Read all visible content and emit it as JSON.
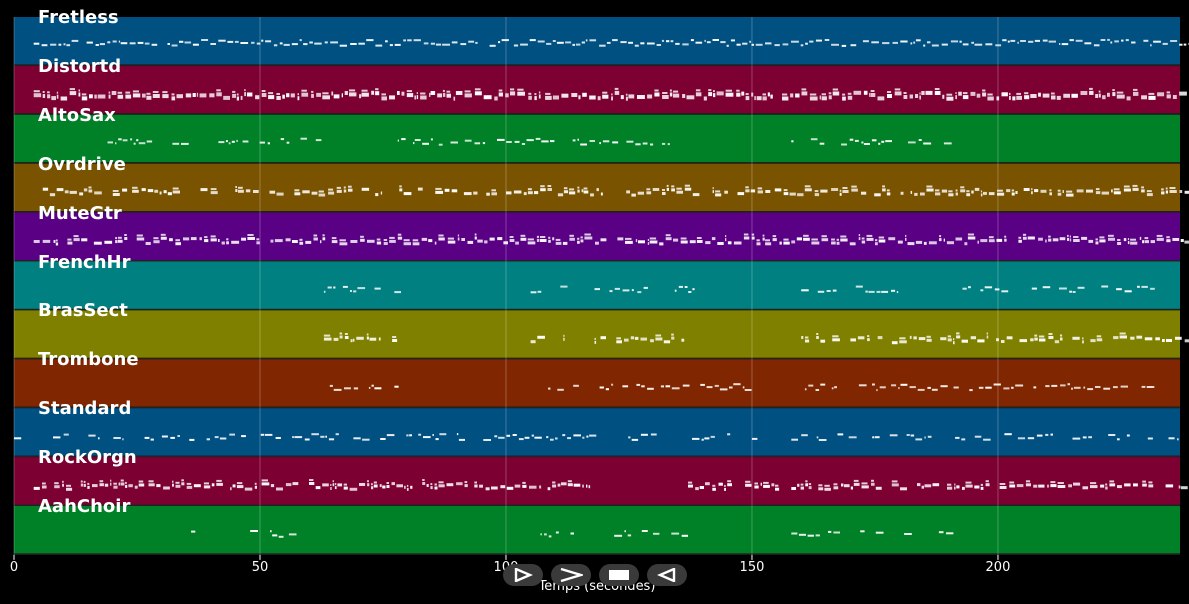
{
  "tracks": [
    {
      "name": "Fretless",
      "color": "#005082",
      "density": 0.95,
      "segments": [
        [
          4,
          243
        ]
      ],
      "pitch": 0.35,
      "thick": 2
    },
    {
      "name": "Distortd",
      "color": "#7d0033",
      "density": 0.98,
      "segments": [
        [
          4,
          243
        ]
      ],
      "pitch": 0.5,
      "thick": 4
    },
    {
      "name": "AltoSax",
      "color": "#008027",
      "density": 0.7,
      "segments": [
        [
          19,
          64
        ],
        [
          78,
          138
        ],
        [
          158,
          190
        ]
      ],
      "pitch": 0.4,
      "thick": 2
    },
    {
      "name": "Ovrdrive",
      "color": "#7a5300",
      "density": 0.85,
      "segments": [
        [
          4,
          22
        ],
        [
          24,
          34
        ],
        [
          36,
          80
        ],
        [
          81,
          95
        ],
        [
          96,
          138
        ],
        [
          142,
          243
        ]
      ],
      "pitch": 0.45,
      "thick": 3
    },
    {
      "name": "MuteGtr",
      "color": "#5a0085",
      "density": 0.98,
      "segments": [
        [
          4,
          243
        ]
      ],
      "pitch": 0.45,
      "thick": 3
    },
    {
      "name": "FrenchHr",
      "color": "#008080",
      "density": 0.7,
      "segments": [
        [
          63,
          78
        ],
        [
          105,
          112
        ],
        [
          118,
          138
        ],
        [
          160,
          167
        ],
        [
          170,
          182
        ],
        [
          190,
          232
        ]
      ],
      "pitch": 0.45,
      "thick": 2
    },
    {
      "name": "BrasSect",
      "color": "#808000",
      "density": 0.85,
      "segments": [
        [
          63,
          78
        ],
        [
          105,
          112
        ],
        [
          118,
          137
        ],
        [
          160,
          167
        ],
        [
          170,
          243
        ]
      ],
      "pitch": 0.5,
      "thick": 3
    },
    {
      "name": "Trombone",
      "color": "#802600",
      "density": 0.75,
      "segments": [
        [
          63,
          78
        ],
        [
          108,
          115
        ],
        [
          118,
          150
        ],
        [
          160,
          167
        ],
        [
          170,
          232
        ]
      ],
      "pitch": 0.45,
      "thick": 2
    },
    {
      "name": "Standard",
      "color": "#005082",
      "density": 0.6,
      "segments": [
        [
          0,
          152
        ],
        [
          158,
          243
        ]
      ],
      "pitch": 0.5,
      "thick": 2
    },
    {
      "name": "RockOrgn",
      "color": "#7d0033",
      "density": 0.9,
      "segments": [
        [
          4,
          117
        ],
        [
          137,
          155
        ],
        [
          158,
          243
        ]
      ],
      "pitch": 0.5,
      "thick": 3
    },
    {
      "name": "AahChoir",
      "color": "#008027",
      "density": 0.6,
      "segments": [
        [
          36,
          37
        ],
        [
          48,
          56
        ],
        [
          95,
          96
        ],
        [
          107,
          115
        ],
        [
          122,
          138
        ],
        [
          158,
          167
        ],
        [
          172,
          181
        ],
        [
          188,
          190
        ]
      ],
      "pitch": 0.45,
      "thick": 2
    }
  ],
  "chart_data": {
    "type": "piano-roll",
    "xlabel": "Temps (secondes)",
    "xlim": [
      0,
      237
    ],
    "xticks": [
      0,
      50,
      100,
      150,
      200
    ],
    "tick_labels": [
      "0",
      "50",
      "100",
      "150",
      "200"
    ],
    "grid": true,
    "series": [
      "Fretless",
      "Distortd",
      "AltoSax",
      "Ovrdrive",
      "MuteGtr",
      "FrenchHr",
      "BrasSect",
      "Trombone",
      "Standard",
      "RockOrgn",
      "AahChoir"
    ]
  },
  "controls": [
    {
      "name": "play-button",
      "icon": "play-icon"
    },
    {
      "name": "next-button",
      "icon": "chevron-right-icon"
    },
    {
      "name": "stop-button",
      "icon": "stop-icon"
    },
    {
      "name": "rewind-button",
      "icon": "reverse-play-icon"
    }
  ]
}
